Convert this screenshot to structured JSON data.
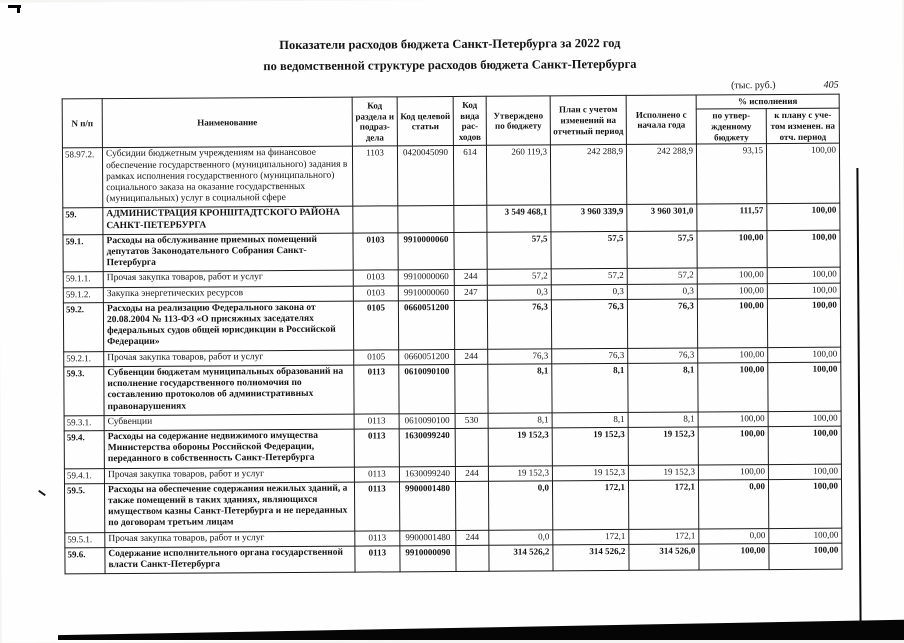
{
  "doc": {
    "title1": "Показатели расходов бюджета Санкт-Петербурга за 2022 год",
    "title2": "по ведомственной структуре расходов бюджета Санкт-Петербурга",
    "units": "(тыс. руб.)",
    "page_number": "405"
  },
  "table": {
    "headers": {
      "num": "N п/п",
      "name": "Наименование",
      "code_section": "Код раздела и подраз-дела",
      "code_target": "Код целевой статьи",
      "code_kind": "Код вида рас-ходов",
      "approved": "Утверждено по бюджету",
      "plan": "План с учетом изменений на отчетный период",
      "executed": "Исполнено с начала года",
      "pct_group": "% исполнения",
      "pct_budget": "по утвер-жденному бюджету",
      "pct_plan": "к плану с уче-том изменен. на отч. период"
    },
    "rows": [
      {
        "num": "58.97.2.",
        "name": "Субсидии бюджетным учреждениям на финансовое обеспечение государственного (муниципального) задания в рамках исполнения государственного (муниципального) социального заказа на оказание государственных (муниципальных) услуг в социальной сфере",
        "code_section": "1103",
        "code_target": "0420045090",
        "code_kind": "614",
        "approved": "260 119,3",
        "plan": "242 288,9",
        "executed": "242 288,9",
        "pct_budget": "93,15",
        "pct_plan": "100,00",
        "bold": false
      },
      {
        "num": "59.",
        "name": "АДМИНИСТРАЦИЯ КРОНШТАДТСКОГО РАЙОНА САНКТ-ПЕТЕРБУРГА",
        "code_section": "",
        "code_target": "",
        "code_kind": "",
        "approved": "3 549 468,1",
        "plan": "3 960 339,9",
        "executed": "3 960 301,0",
        "pct_budget": "111,57",
        "pct_plan": "100,00",
        "bold": true
      },
      {
        "num": "59.1.",
        "name": "Расходы на обслуживание приемных помещений депутатов Законодательного Собрания Санкт-Петербурга",
        "code_section": "0103",
        "code_target": "9910000060",
        "code_kind": "",
        "approved": "57,5",
        "plan": "57,5",
        "executed": "57,5",
        "pct_budget": "100,00",
        "pct_plan": "100,00",
        "bold": true
      },
      {
        "num": "59.1.1.",
        "name": "Прочая закупка товаров, работ и услуг",
        "code_section": "0103",
        "code_target": "9910000060",
        "code_kind": "244",
        "approved": "57,2",
        "plan": "57,2",
        "executed": "57,2",
        "pct_budget": "100,00",
        "pct_plan": "100,00",
        "bold": false
      },
      {
        "num": "59.1.2.",
        "name": "Закупка энергетических ресурсов",
        "code_section": "0103",
        "code_target": "9910000060",
        "code_kind": "247",
        "approved": "0,3",
        "plan": "0,3",
        "executed": "0,3",
        "pct_budget": "100,00",
        "pct_plan": "100,00",
        "bold": false
      },
      {
        "num": "59.2.",
        "name": "Расходы на реализацию Федерального закона от 20.08.2004 № 113-ФЗ «О присяжных заседателях федеральных судов общей юрисдикции в Российской Федерации»",
        "code_section": "0105",
        "code_target": "0660051200",
        "code_kind": "",
        "approved": "76,3",
        "plan": "76,3",
        "executed": "76,3",
        "pct_budget": "100,00",
        "pct_plan": "100,00",
        "bold": true
      },
      {
        "num": "59.2.1.",
        "name": "Прочая закупка товаров, работ и услуг",
        "code_section": "0105",
        "code_target": "0660051200",
        "code_kind": "244",
        "approved": "76,3",
        "plan": "76,3",
        "executed": "76,3",
        "pct_budget": "100,00",
        "pct_plan": "100,00",
        "bold": false
      },
      {
        "num": "59.3.",
        "name": "Субвенции бюджетам муниципальных образований на исполнение государственного полномочия по составлению протоколов об административных правонарушениях",
        "code_section": "0113",
        "code_target": "0610090100",
        "code_kind": "",
        "approved": "8,1",
        "plan": "8,1",
        "executed": "8,1",
        "pct_budget": "100,00",
        "pct_plan": "100,00",
        "bold": true
      },
      {
        "num": "59.3.1.",
        "name": "Субвенции",
        "code_section": "0113",
        "code_target": "0610090100",
        "code_kind": "530",
        "approved": "8,1",
        "plan": "8,1",
        "executed": "8,1",
        "pct_budget": "100,00",
        "pct_plan": "100,00",
        "bold": false
      },
      {
        "num": "59.4.",
        "name": "Расходы на содержание недвижимого имущества Министерства обороны Российской Федерации, переданного в собственность Санкт-Петербурга",
        "code_section": "0113",
        "code_target": "1630099240",
        "code_kind": "",
        "approved": "19 152,3",
        "plan": "19 152,3",
        "executed": "19 152,3",
        "pct_budget": "100,00",
        "pct_plan": "100,00",
        "bold": true
      },
      {
        "num": "59.4.1.",
        "name": "Прочая закупка товаров, работ и услуг",
        "code_section": "0113",
        "code_target": "1630099240",
        "code_kind": "244",
        "approved": "19 152,3",
        "plan": "19 152,3",
        "executed": "19 152,3",
        "pct_budget": "100,00",
        "pct_plan": "100,00",
        "bold": false
      },
      {
        "num": "59.5.",
        "name": "Расходы на обеспечение содержания нежилых зданий, а также помещений в таких зданиях, являющихся имуществом казны Санкт-Петербурга и не переданных по договорам третьим лицам",
        "code_section": "0113",
        "code_target": "9900001480",
        "code_kind": "",
        "approved": "0,0",
        "plan": "172,1",
        "executed": "172,1",
        "pct_budget": "0,00",
        "pct_plan": "100,00",
        "bold": true
      },
      {
        "num": "59.5.1.",
        "name": "Прочая закупка товаров, работ и услуг",
        "code_section": "0113",
        "code_target": "9900001480",
        "code_kind": "244",
        "approved": "0,0",
        "plan": "172,1",
        "executed": "172,1",
        "pct_budget": "0,00",
        "pct_plan": "100,00",
        "bold": false
      },
      {
        "num": "59.6.",
        "name": "Содержание исполнительного органа государственной  власти Санкт-Петербурга",
        "code_section": "0113",
        "code_target": "9910000090",
        "code_kind": "",
        "approved": "314 526,2",
        "plan": "314 526,2",
        "executed": "314 526,0",
        "pct_budget": "100,00",
        "pct_plan": "100,00",
        "bold": true
      }
    ]
  }
}
